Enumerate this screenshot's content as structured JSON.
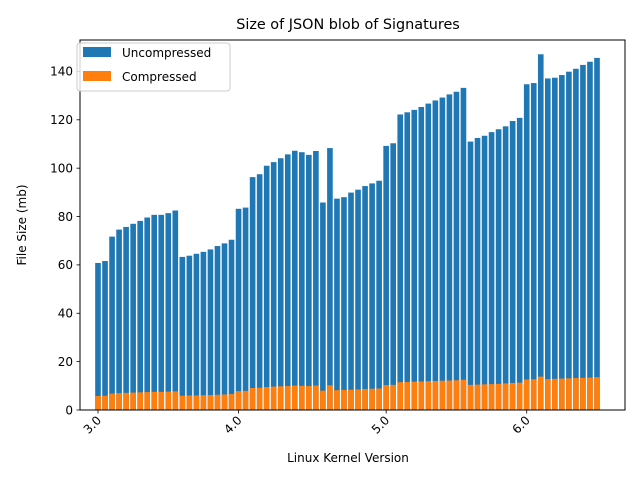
{
  "chart_data": {
    "type": "bar",
    "stacked": false,
    "overlaid": true,
    "title": "Size of JSON blob of Signatures",
    "xlabel": "Linux Kernel Version",
    "ylabel": "File Size (mb)",
    "ylim": [
      0,
      153
    ],
    "yticks": [
      0,
      20,
      40,
      60,
      80,
      100,
      120,
      140
    ],
    "xticks": [
      {
        "label": "3.0",
        "index": 0
      },
      {
        "label": "4.0",
        "index": 20
      },
      {
        "label": "5.0",
        "index": 41
      },
      {
        "label": "6.0",
        "index": 61
      }
    ],
    "xtick_rotation": 45,
    "grid": false,
    "legend": "top-left",
    "series": [
      {
        "name": "Uncompressed",
        "color": "#1f77b4",
        "values": [
          60.8,
          61.6,
          71.7,
          74.6,
          75.7,
          77.0,
          78.2,
          79.6,
          80.7,
          80.7,
          81.4,
          82.5,
          63.3,
          63.8,
          64.6,
          65.4,
          66.4,
          67.8,
          68.9,
          70.4,
          83.2,
          83.7,
          96.3,
          97.5,
          101.0,
          102.5,
          104.1,
          105.7,
          107.2,
          106.6,
          105.5,
          107.1,
          85.8,
          108.3,
          87.4,
          88.0,
          89.9,
          91.1,
          92.6,
          93.7,
          94.8,
          109.2,
          110.3,
          122.2,
          123.1,
          124.1,
          125.3,
          126.7,
          128.0,
          129.2,
          130.5,
          131.6,
          133.2,
          111.0,
          112.5,
          113.4,
          114.9,
          116.1,
          117.3,
          119.5,
          120.8,
          134.7,
          135.2,
          147.1,
          137.1,
          137.4,
          138.5,
          139.9,
          141.1,
          142.7,
          144.0,
          145.6
        ]
      },
      {
        "name": "Compressed",
        "color": "#ff7f0e",
        "values": [
          5.8,
          5.9,
          6.8,
          7.0,
          7.1,
          7.2,
          7.3,
          7.4,
          7.5,
          7.5,
          7.6,
          7.7,
          5.9,
          6.0,
          6.0,
          6.1,
          6.2,
          6.3,
          6.4,
          6.6,
          7.8,
          7.9,
          9.1,
          9.2,
          9.5,
          9.7,
          9.8,
          9.9,
          10.1,
          10.0,
          9.9,
          10.1,
          8.0,
          10.2,
          8.2,
          8.3,
          8.4,
          8.5,
          8.7,
          8.8,
          8.9,
          10.3,
          10.4,
          11.5,
          11.6,
          11.7,
          11.8,
          11.9,
          12.0,
          12.1,
          12.2,
          12.3,
          12.5,
          10.4,
          10.5,
          10.6,
          10.7,
          10.8,
          11.0,
          11.2,
          11.3,
          12.6,
          12.7,
          13.8,
          12.8,
          12.9,
          13.0,
          13.1,
          13.2,
          13.3,
          13.4,
          13.6
        ]
      }
    ]
  }
}
